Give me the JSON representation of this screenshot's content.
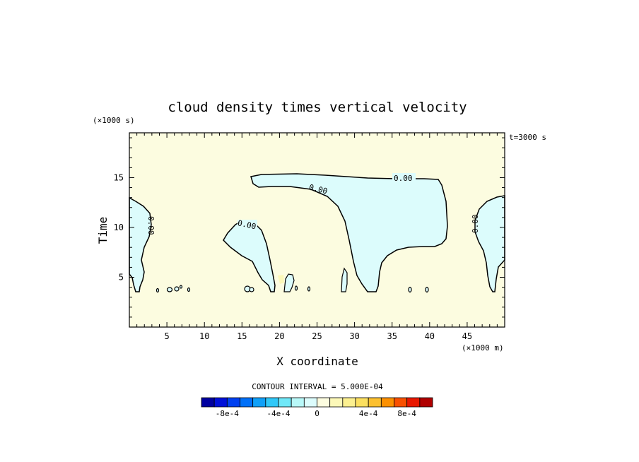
{
  "chart_data": {
    "type": "heatmap",
    "title": "cloud density times vertical velocity",
    "xlabel": "X coordinate",
    "ylabel": "Time",
    "x_unit": "(×1000 m)",
    "y_unit": "(×1000 s)",
    "time_note": "t=3000 s",
    "xlim": [
      0,
      50
    ],
    "ylim": [
      0,
      19.5
    ],
    "x_ticks": [
      5,
      10,
      15,
      20,
      25,
      30,
      35,
      40,
      45
    ],
    "y_ticks": [
      5,
      10,
      15
    ],
    "contour_interval_text": "CONTOUR INTERVAL = 5.000E-04",
    "contour_label": "0.00",
    "background_value": "0 to 1e-4",
    "colorbar": {
      "colors": [
        "#0000a0",
        "#0010d8",
        "#0040f0",
        "#0070f8",
        "#10a0f8",
        "#30c8f8",
        "#70e8f8",
        "#b8f8f8",
        "#dcfcfc",
        "#fcfce0",
        "#fcf8b8",
        "#fcf090",
        "#fce060",
        "#fcc030",
        "#fc9000",
        "#f85000",
        "#e81800",
        "#b00000"
      ],
      "tick_labels": [
        "-8e-4",
        "-4e-4",
        "0",
        "4e-4",
        "8e-4"
      ]
    },
    "regions": [
      {
        "name": "left edge",
        "sign": "negative",
        "approx_x": [
          0,
          2.5
        ],
        "approx_y": [
          3.5,
          13.5
        ]
      },
      {
        "name": "left-center lobe",
        "sign": "negative",
        "approx_x": [
          12.5,
          19.5
        ],
        "approx_y": [
          3.5,
          10.5
        ]
      },
      {
        "name": "large central region",
        "sign": "negative",
        "approx_x": [
          16,
          42.5
        ],
        "approx_y": [
          3.5,
          15.8
        ]
      },
      {
        "name": "right edge",
        "sign": "negative",
        "approx_x": [
          45.5,
          50
        ],
        "approx_y": [
          3.5,
          13.5
        ]
      },
      {
        "name": "small positive patch",
        "sign": "positive",
        "approx_x": [
          19.5,
          20.5
        ],
        "approx_y": [
          4,
          5.5
        ]
      }
    ]
  },
  "colors": {
    "positive_fill": "#fcfce0",
    "negative_fill": "#dcfcfc",
    "patch_fill": "#fcf8b8"
  }
}
